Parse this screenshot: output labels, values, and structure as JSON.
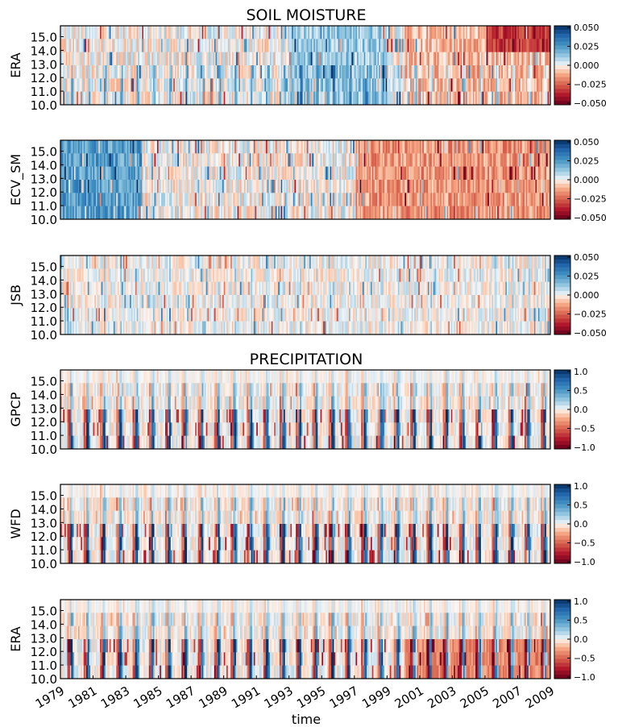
{
  "figure": {
    "section_titles": [
      "SOIL MOISTURE",
      "PRECIPITATION"
    ],
    "xlabel": "time"
  },
  "chart_data": [
    {
      "type": "heatmap",
      "title": "SOIL MOISTURE",
      "ylabel": "ERA",
      "x_range": [
        1979,
        2009
      ],
      "y_ticks": [
        "15.0",
        "14.0",
        "13.0",
        "12.0",
        "11.0",
        "10.0"
      ],
      "ylim": [
        10.0,
        15.8
      ],
      "colorbar": {
        "ticks": [
          "0.050",
          "0.025",
          "0.000",
          "−0.025",
          "−0.050"
        ],
        "range": [
          -0.05,
          0.05
        ],
        "cmap": "RdBu"
      },
      "pattern": "drying trend after 2000, strongest at upper latitudes after 2005; wetter 1993-1999"
    },
    {
      "type": "heatmap",
      "title": "",
      "ylabel": "ECV_SM",
      "x_range": [
        1979,
        2009
      ],
      "y_ticks": [
        "15.0",
        "14.0",
        "13.0",
        "12.0",
        "11.0",
        "10.0"
      ],
      "ylim": [
        10.0,
        15.8
      ],
      "colorbar": {
        "ticks": [
          "0.050",
          "0.025",
          "0.000",
          "−0.025",
          "−0.050"
        ],
        "range": [
          -0.05,
          0.05
        ],
        "cmap": "RdBu"
      },
      "pattern": "wet 1979-1984, drying trend after 1997"
    },
    {
      "type": "heatmap",
      "title": "",
      "ylabel": "JSB",
      "x_range": [
        1979,
        2009
      ],
      "y_ticks": [
        "15.0",
        "14.0",
        "13.0",
        "12.0",
        "11.0",
        "10.0"
      ],
      "ylim": [
        10.0,
        15.8
      ],
      "colorbar": {
        "ticks": [
          "0.050",
          "0.025",
          "0.000",
          "−0.025",
          "−0.050"
        ],
        "range": [
          -0.05,
          0.05
        ],
        "cmap": "RdBu"
      },
      "pattern": "weak seasonal anomalies, no trend"
    },
    {
      "type": "heatmap",
      "title": "PRECIPITATION",
      "ylabel": "GPCP",
      "x_range": [
        1979,
        2009
      ],
      "y_ticks": [
        "15.0",
        "14.0",
        "13.0",
        "12.0",
        "11.0",
        "10.0"
      ],
      "ylim": [
        10.0,
        15.8
      ],
      "colorbar": {
        "ticks": [
          "1.0",
          "0.5",
          "0.0",
          "−0.5",
          "−1.0"
        ],
        "range": [
          -1.0,
          1.0
        ],
        "cmap": "RdBu"
      },
      "pattern": "strong seasonal rain pulses at low latitudes"
    },
    {
      "type": "heatmap",
      "title": "",
      "ylabel": "WFD",
      "x_range": [
        1979,
        2009
      ],
      "y_ticks": [
        "15.0",
        "14.0",
        "13.0",
        "12.0",
        "11.0",
        "10.0"
      ],
      "ylim": [
        10.0,
        15.8
      ],
      "colorbar": {
        "ticks": [
          "1.0",
          "0.5",
          "0.0",
          "−0.5",
          "−1.0"
        ],
        "range": [
          -1.0,
          1.0
        ],
        "cmap": "RdBu"
      },
      "pattern": "strong seasonal rain pulses at low latitudes"
    },
    {
      "type": "heatmap",
      "title": "",
      "ylabel": "ERA",
      "x_range": [
        1979,
        2009
      ],
      "y_ticks": [
        "15.0",
        "14.0",
        "13.0",
        "12.0",
        "11.0",
        "10.0"
      ],
      "ylim": [
        10.0,
        15.8
      ],
      "colorbar": {
        "ticks": [
          "1.0",
          "0.5",
          "0.0",
          "−0.5",
          "−1.0"
        ],
        "range": [
          -1.0,
          1.0
        ],
        "cmap": "RdBu"
      },
      "pattern": "strong seasonal pulses, drier low latitudes after 2000",
      "x_ticks": [
        "1979",
        "1981",
        "1983",
        "1985",
        "1987",
        "1989",
        "1991",
        "1993",
        "1995",
        "1997",
        "1999",
        "2001",
        "2003",
        "2005",
        "2007",
        "2009"
      ],
      "xlabel": "time"
    }
  ]
}
